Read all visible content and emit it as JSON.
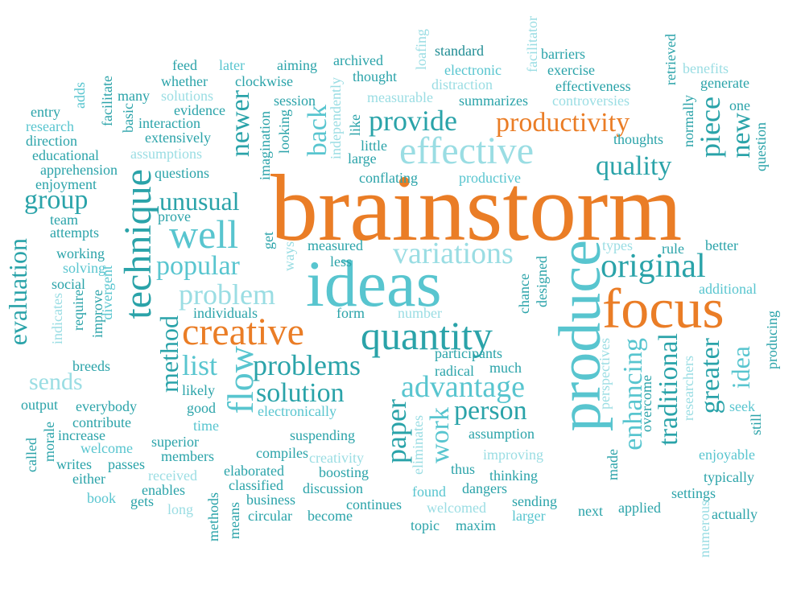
{
  "palette": {
    "dark_teal": "#2aa3a9",
    "medium_cyan": "#58c5cf",
    "light_cyan": "#9adde3",
    "orange": "#ea7d26",
    "background": "#ffffff"
  },
  "words": {
    "brainstorm": "brainstorm",
    "ideas": "ideas",
    "produce": "produce",
    "focus": "focus",
    "creative": "creative",
    "quantity": "quantity",
    "effective": "effective",
    "productivity": "productivity",
    "original": "original",
    "technique": "technique",
    "well": "well",
    "flow": "flow",
    "provide": "provide",
    "variations": "variations",
    "problem": "problem",
    "problems": "problems",
    "solution": "solution",
    "advantage": "advantage",
    "person": "person",
    "popular": "popular",
    "unusual": "unusual",
    "newer": "newer",
    "back": "back",
    "piece": "piece",
    "new": "new",
    "quality": "quality",
    "group": "group",
    "evaluation": "evaluation",
    "method": "method",
    "sends": "sends",
    "list": "list",
    "paper": "paper",
    "work": "work",
    "enhancing": "enhancing",
    "traditional": "traditional",
    "greater": "greater",
    "idea": "idea",
    "standard": "standard",
    "barriers": "barriers",
    "exercise": "exercise",
    "electronic": "electronic",
    "facilitator": "facilitator",
    "loafing": "loafing",
    "retrieved": "retrieved",
    "benefits": "benefits",
    "generate": "generate",
    "feed": "feed",
    "later": "later",
    "aiming": "aiming",
    "archived": "archived",
    "whether": "whether",
    "clockwise": "clockwise",
    "thought": "thought",
    "distraction": "distraction",
    "effectiveness": "effectiveness",
    "adds": "adds",
    "facilitate": "facilitate",
    "many": "many",
    "solutions": "solutions",
    "session": "session",
    "measurable": "measurable",
    "summarizes": "summarizes",
    "controversies": "controversies",
    "normally": "normally",
    "one": "one",
    "entry": "entry",
    "research": "research",
    "direction": "direction",
    "basic": "basic",
    "evidence": "evidence",
    "interaction": "interaction",
    "extensively": "extensively",
    "looking": "looking",
    "imagination": "imagination",
    "independently": "independently",
    "like": "like",
    "little": "little",
    "large": "large",
    "thoughts": "thoughts",
    "question": "question",
    "educational": "educational",
    "assumptions": "assumptions",
    "apprehension": "apprehension",
    "questions": "questions",
    "conflating": "conflating",
    "productive": "productive",
    "enjoyment": "enjoyment",
    "team": "team",
    "prove": "prove",
    "attempts": "attempts",
    "get": "get",
    "ways": "ways",
    "measured": "measured",
    "less": "less",
    "types": "types",
    "rule": "rule",
    "better": "better",
    "working": "working",
    "solving": "solving",
    "social": "social",
    "indicates": "indicates",
    "require": "require",
    "improve": "improve",
    "divergent": "divergent",
    "breeds": "breeds",
    "individuals": "individuals",
    "form": "form",
    "number": "number",
    "chance": "chance",
    "designed": "designed",
    "additional": "additional",
    "still": "still",
    "producing": "producing",
    "participants": "participants",
    "radical": "radical",
    "much": "much",
    "perspectives": "perspectives",
    "researchers": "researchers",
    "overcome": "overcome",
    "seek": "seek",
    "output": "output",
    "everybody": "everybody",
    "likely": "likely",
    "good": "good",
    "electronically": "electronically",
    "contribute": "contribute",
    "time": "time",
    "called": "called",
    "morale": "morale",
    "increase": "increase",
    "welcome": "welcome",
    "superior": "superior",
    "suspending": "suspending",
    "assumption": "assumption",
    "eliminates": "eliminates",
    "made": "made",
    "enjoyable": "enjoyable",
    "writes": "writes",
    "passes": "passes",
    "members": "members",
    "compiles": "compiles",
    "creativity": "creativity",
    "improving": "improving",
    "either": "either",
    "received": "received",
    "elaborated": "elaborated",
    "boosting": "boosting",
    "thus": "thus",
    "thinking": "thinking",
    "typically": "typically",
    "enables": "enables",
    "classified": "classified",
    "discussion": "discussion",
    "found": "found",
    "dangers": "dangers",
    "settings": "settings",
    "book": "book",
    "gets": "gets",
    "business": "business",
    "continues": "continues",
    "welcomed": "welcomed",
    "sending": "sending",
    "next": "next",
    "applied": "applied",
    "long": "long",
    "methods": "methods",
    "means": "means",
    "circular": "circular",
    "become": "become",
    "larger": "larger",
    "numerous": "numerous",
    "actually": "actually",
    "topic": "topic",
    "maxim": "maxim"
  }
}
